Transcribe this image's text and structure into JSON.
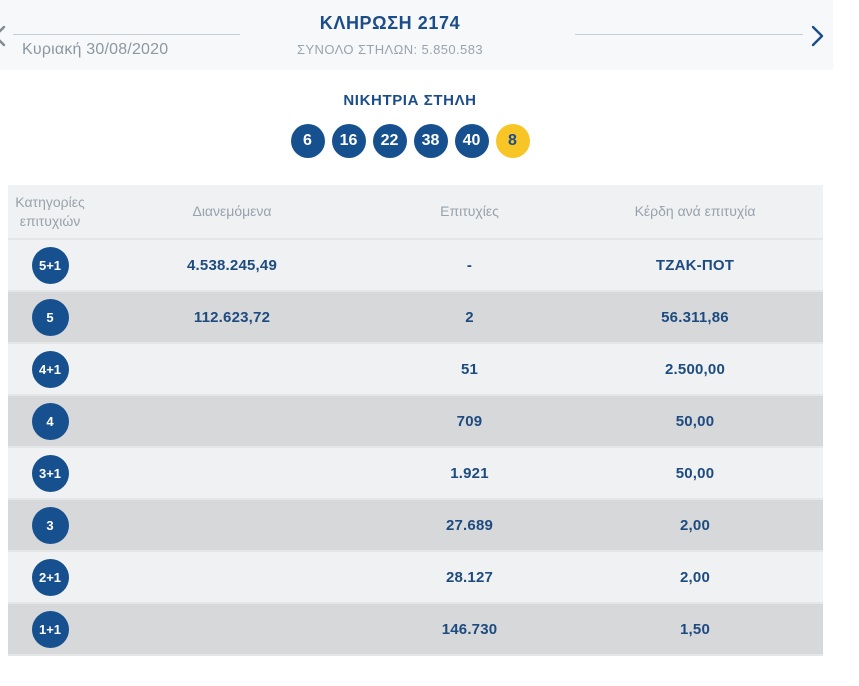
{
  "nav": {
    "date": "Κυριακή 30/08/2020",
    "title": "ΚΛΗΡΩΣΗ 2174",
    "subtitle": "ΣΥΝΟΛΟ ΣΤΗΛΩΝ: 5.850.583"
  },
  "winning": {
    "heading": "ΝΙΚΗΤΡΙΑ ΣΤΗΛΗ",
    "numbers": [
      6,
      16,
      22,
      38,
      40
    ],
    "bonus": 8
  },
  "table": {
    "headers": [
      "Κατηγορίες επιτυχιών",
      "Διανεμόμενα",
      "Επιτυχίες",
      "Κέρδη ανά επιτυχία"
    ],
    "rows": [
      {
        "category": "5+1",
        "distributed": "4.538.245,49",
        "winners": "-",
        "prize": "ΤΖΑΚ-ΠΟΤ"
      },
      {
        "category": "5",
        "distributed": "112.623,72",
        "winners": "2",
        "prize": "56.311,86"
      },
      {
        "category": "4+1",
        "distributed": "",
        "winners": "51",
        "prize": "2.500,00"
      },
      {
        "category": "4",
        "distributed": "",
        "winners": "709",
        "prize": "50,00"
      },
      {
        "category": "3+1",
        "distributed": "",
        "winners": "1.921",
        "prize": "50,00"
      },
      {
        "category": "3",
        "distributed": "",
        "winners": "27.689",
        "prize": "2,00"
      },
      {
        "category": "2+1",
        "distributed": "",
        "winners": "28.127",
        "prize": "2,00"
      },
      {
        "category": "1+1",
        "distributed": "",
        "winners": "146.730",
        "prize": "1,50"
      }
    ]
  },
  "colors": {
    "navy": "#1b4d8a",
    "ball_blue": "#16508f",
    "bonus_yellow": "#f8c527",
    "gray_text": "#8d97a1",
    "row_light": "#f0f1f2",
    "row_dark": "#d6d8da",
    "nav_bg": "#f7f8f9"
  }
}
